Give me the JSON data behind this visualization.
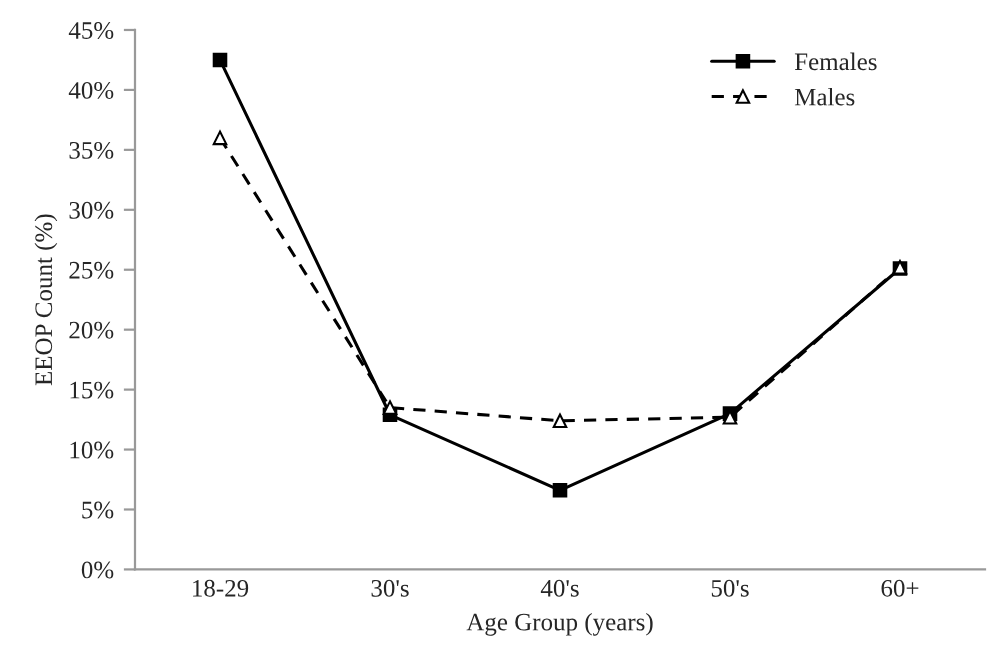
{
  "chart_data": {
    "type": "line",
    "xlabel": "Age Group (years)",
    "ylabel": "EEOP Count (%)",
    "categories": [
      "18-29",
      "30's",
      "40's",
      "50's",
      "60+"
    ],
    "series": [
      {
        "name": "Females",
        "color": "#000000",
        "marker": "square",
        "line_style": "solid",
        "values": [
          42.5,
          12.9,
          6.6,
          13.0,
          25.1
        ]
      },
      {
        "name": "Males",
        "color": "#000000",
        "marker": "triangle",
        "line_style": "dashed",
        "values": [
          36.0,
          13.5,
          12.4,
          12.7,
          25.2
        ]
      }
    ],
    "ylim": [
      0,
      45
    ],
    "yticks": [
      {
        "value": 0,
        "label": "0%"
      },
      {
        "value": 5,
        "label": "5%"
      },
      {
        "value": 10,
        "label": "10%"
      },
      {
        "value": 15,
        "label": "15%"
      },
      {
        "value": 20,
        "label": "20%"
      },
      {
        "value": 25,
        "label": "25%"
      },
      {
        "value": 30,
        "label": "30%"
      },
      {
        "value": 35,
        "label": "35%"
      },
      {
        "value": 40,
        "label": "40%"
      },
      {
        "value": 45,
        "label": "45%"
      }
    ],
    "grid": false,
    "legend": "top right"
  }
}
